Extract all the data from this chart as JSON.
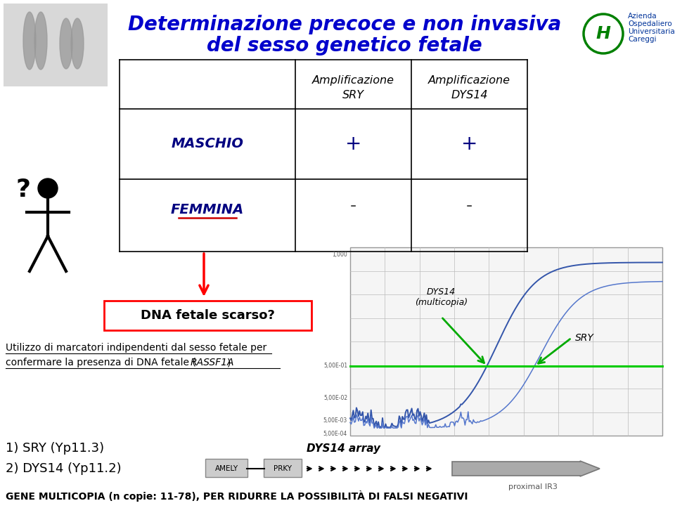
{
  "title_line1": "Determinazione precoce e non invasiva",
  "title_line2": "del sesso genetico fetale",
  "title_color": "#0000CC",
  "bg_color": "#FFFFFF",
  "navy": "#000080",
  "red": "#CC0000",
  "green_line": "#00CC00",
  "green_arrow": "#00AA00",
  "dark_blue_line": "#4466AA",
  "table_col1_header_1": "Amplificazione",
  "table_col1_header_2": "SRY",
  "table_col2_header_1": "Amplificazione",
  "table_col2_header_2": "DYS14",
  "row1_label": "MASCHIO",
  "row1_col1": "+",
  "row1_col2": "+",
  "row2_label": "FEMMINA",
  "row2_col1": "-",
  "row2_col2": "-",
  "box_text": "DNA fetale scarso?",
  "text_main_1": "Utilizzo di marcatori indipendenti dal sesso fetale per",
  "text_main_2_normal": "confermare la presenza di DNA fetale (",
  "text_main_2_italic": "RASSF1A",
  "text_main_2_end": ")",
  "label_sry": "1) SRY (Yp11.3)",
  "label_dys14": "2) DYS14 (Yp11.2)",
  "bottom_text": "GENE MULTICOPIA (n copie: 11-78), PER RIDURRE LA POSSIBILITÀ DI FALSI NEGATIVI",
  "dys14_array_label": "DYS14 array",
  "amely_label": "AMELY",
  "prky_label": "PRKY",
  "proximal_label": "proximal IR3",
  "chart_label_dys14": "DYS14\n(multicopia)",
  "chart_label_sry": "SRY",
  "logo_text1": "Azienda",
  "logo_text2": "Ospedaliero",
  "logo_text3": "Universitaria",
  "logo_text4": "Careggi"
}
